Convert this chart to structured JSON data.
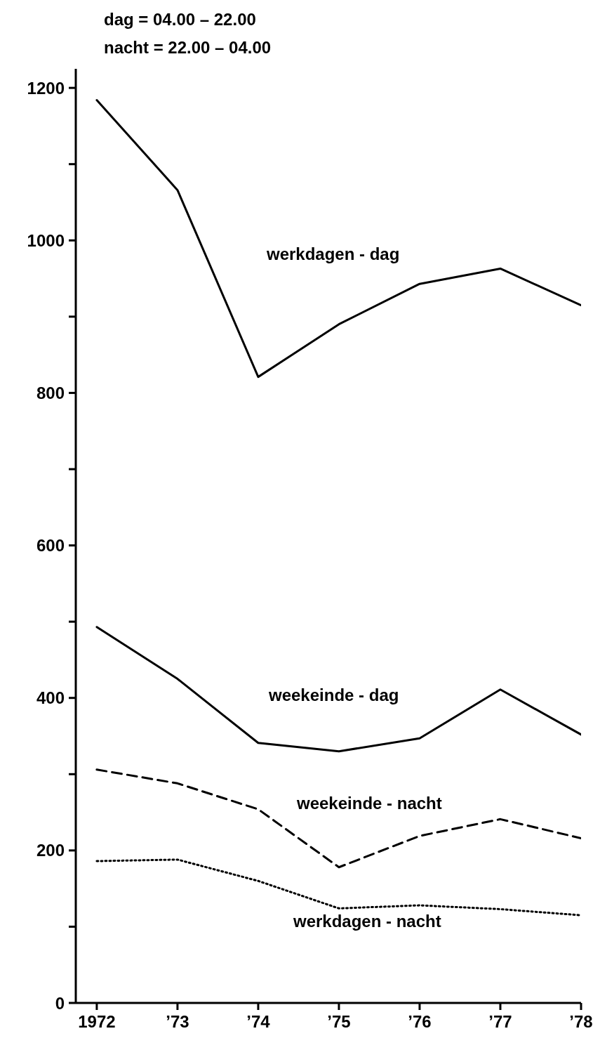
{
  "chart_data": {
    "type": "line",
    "categories": [
      "1972",
      "’73",
      "’74",
      "’75",
      "’76",
      "’77",
      "’78"
    ],
    "series": [
      {
        "name": "werkdagen - dag",
        "color": "#000000",
        "line_style": "solid",
        "values": [
          1184,
          1066,
          821,
          890,
          943,
          963,
          915
        ]
      },
      {
        "name": "weekeinde - dag",
        "color": "#000000",
        "line_style": "solid",
        "values": [
          493,
          425,
          341,
          330,
          347,
          411,
          352
        ]
      },
      {
        "name": "weekeinde - nacht",
        "color": "#000000",
        "line_style": "dashed",
        "values": [
          306,
          288,
          254,
          178,
          219,
          241,
          216
        ]
      },
      {
        "name": "werkdagen - nacht",
        "color": "#000000",
        "line_style": "dotted",
        "values": [
          186,
          188,
          160,
          124,
          128,
          123,
          115
        ]
      }
    ],
    "annotations": [
      "dag = 04.00 – 22.00",
      "nacht = 22.00 – 04.00"
    ],
    "ylim": [
      0,
      1225
    ],
    "yticks": [
      0,
      {
        "value": 100,
        "label": null
      },
      200,
      {
        "value": 300,
        "label": null
      },
      400,
      {
        "value": 500,
        "label": null
      },
      600,
      {
        "value": 700,
        "label": null
      },
      800,
      {
        "value": 900,
        "label": null
      },
      1000,
      {
        "value": 1100,
        "label": null
      },
      1200
    ],
    "grid": false,
    "legend": false,
    "marker": "none"
  }
}
